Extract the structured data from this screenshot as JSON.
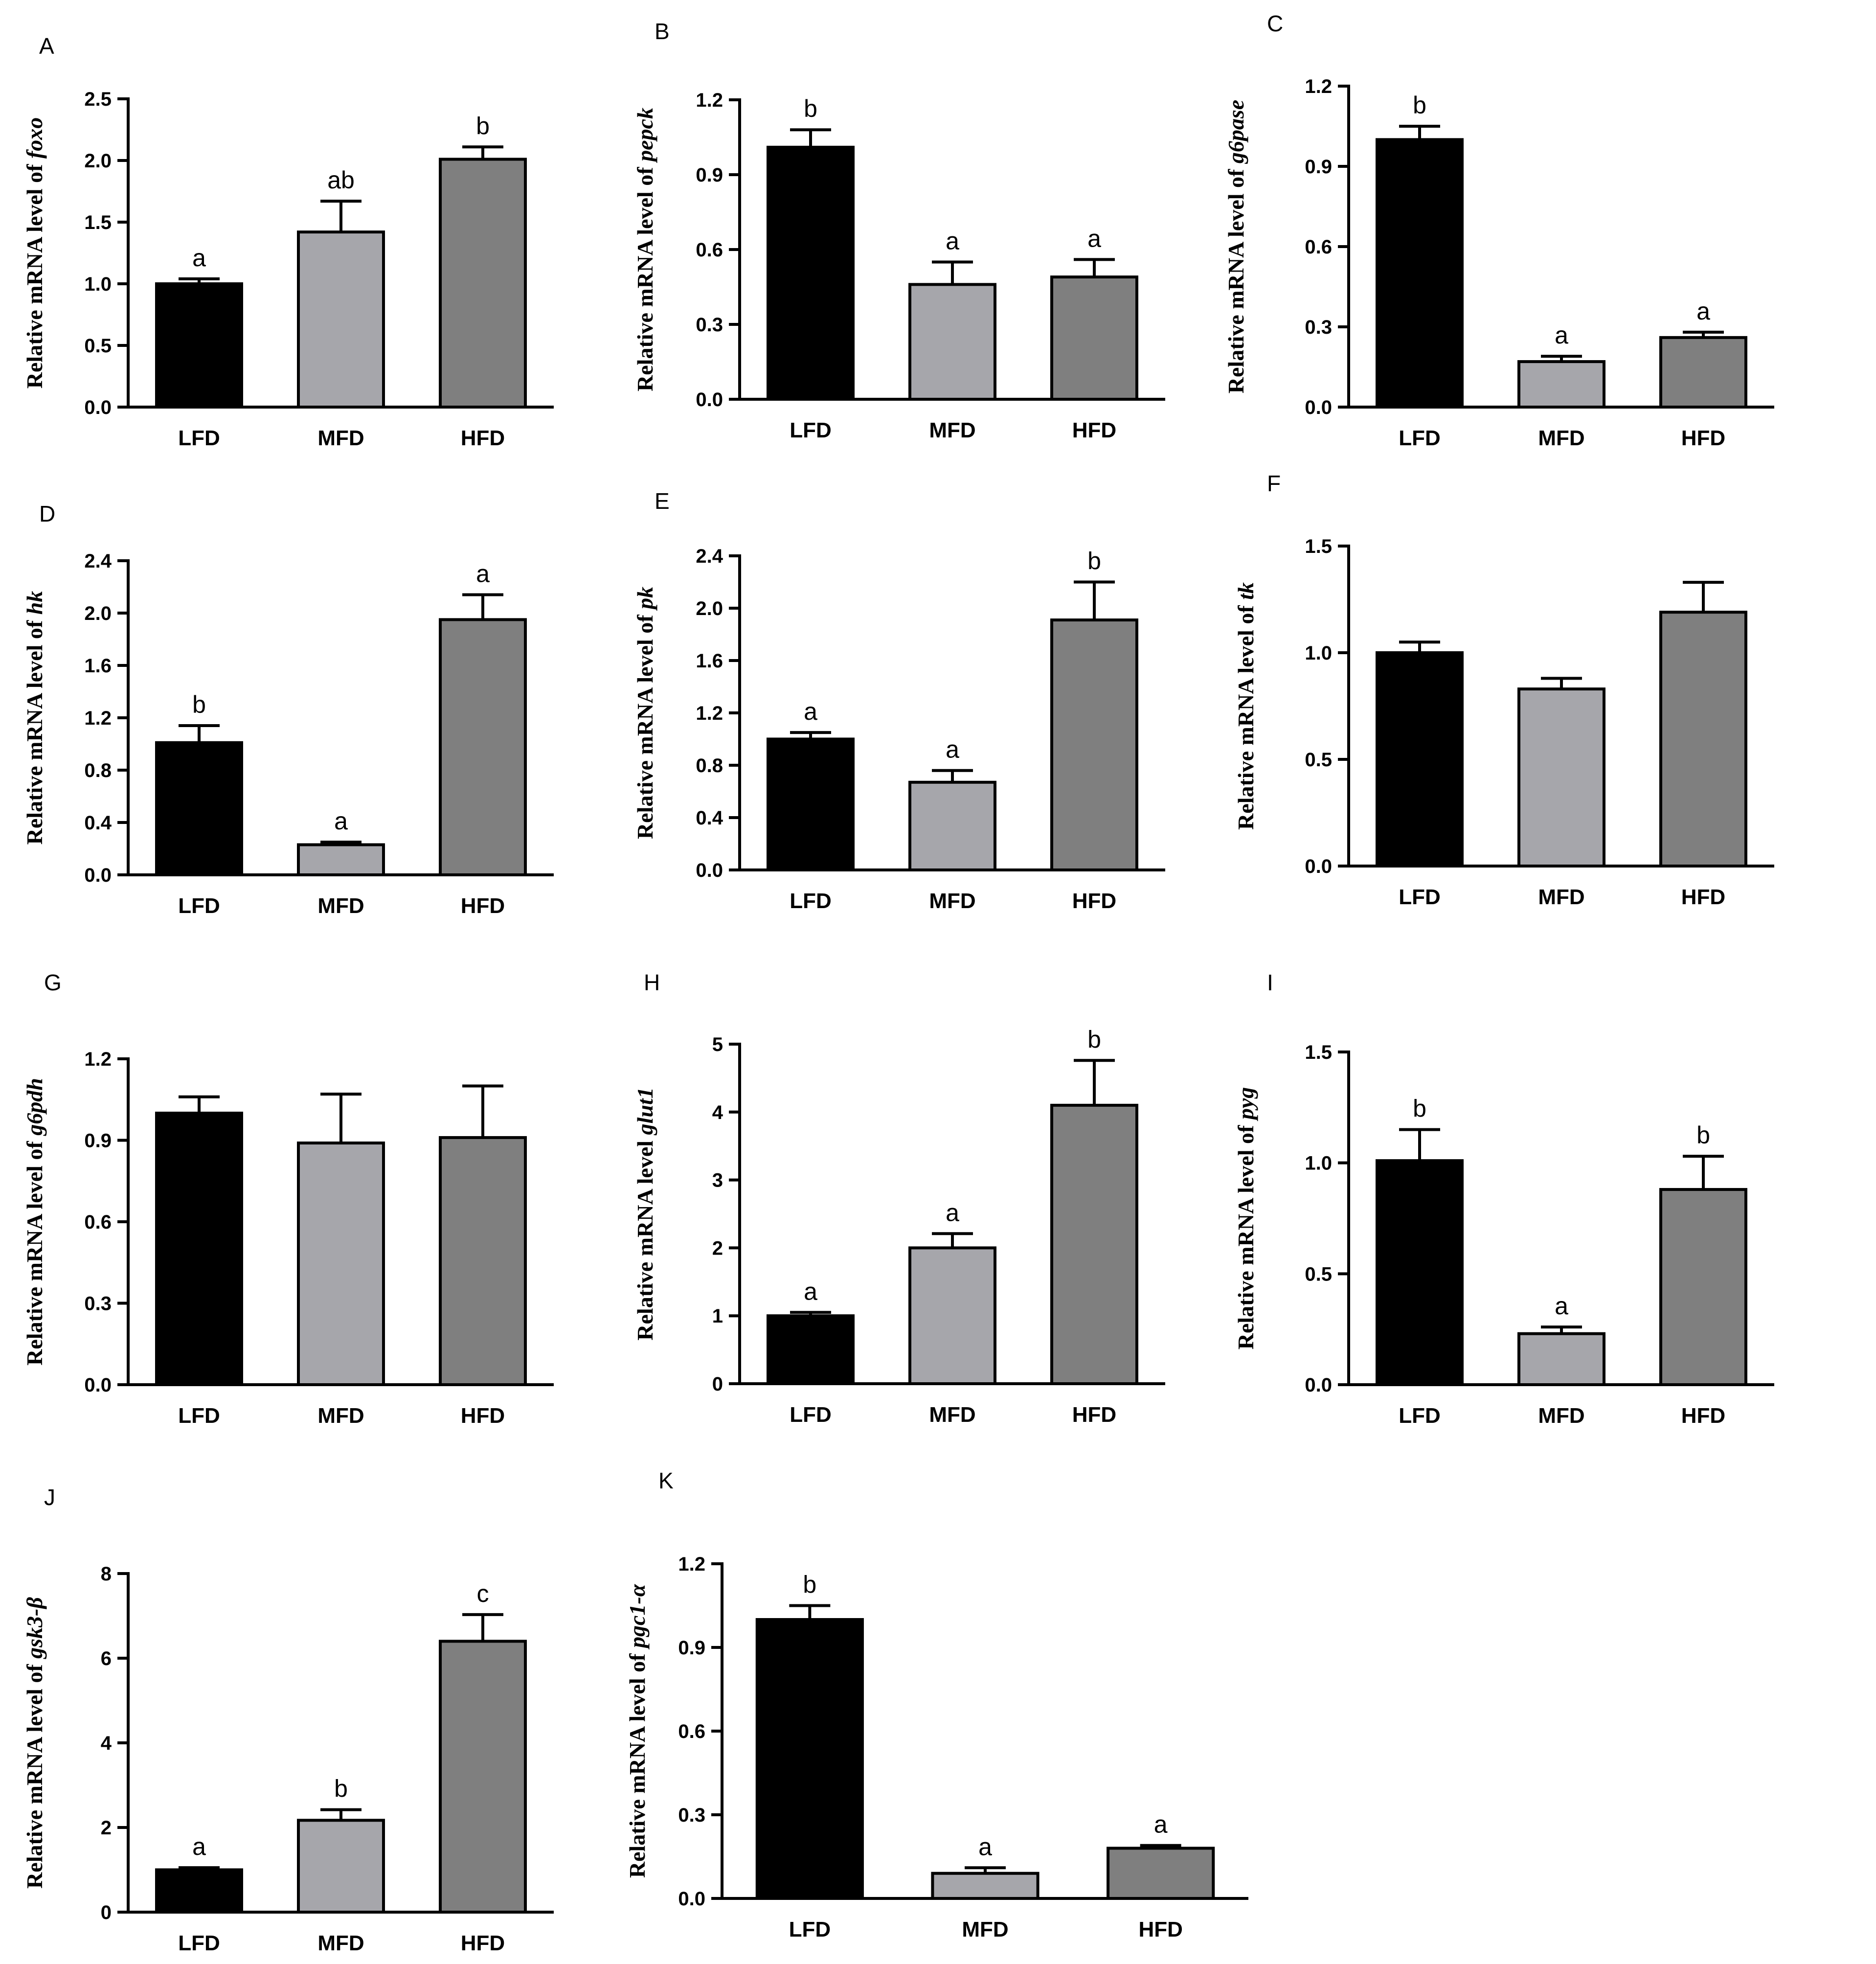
{
  "colors": {
    "LFD": "#000000",
    "MFD": "#a6a6ab",
    "HFD": "#7f7f7f"
  },
  "chart_data": [
    {
      "panel": "A",
      "type": "bar",
      "categories": [
        "LFD",
        "MFD",
        "HFD"
      ],
      "series": [
        {
          "name": "Relative mRNA level of foxo",
          "values": [
            1.0,
            1.42,
            2.01
          ]
        }
      ],
      "errors": [
        0.04,
        0.25,
        0.1
      ],
      "letters": [
        "a",
        "ab",
        "b"
      ],
      "ylabel_prefix": "Relative mRNA level of ",
      "gene": "foxo",
      "ylim": [
        0,
        2.5
      ],
      "yticks": [
        "0.0",
        "0.5",
        "1.0",
        "1.5",
        "2.0",
        "2.5"
      ]
    },
    {
      "panel": "B",
      "type": "bar",
      "categories": [
        "LFD",
        "MFD",
        "HFD"
      ],
      "series": [
        {
          "name": "Relative mRNA level of pepck",
          "values": [
            1.01,
            0.46,
            0.49
          ]
        }
      ],
      "errors": [
        0.07,
        0.09,
        0.07
      ],
      "letters": [
        "b",
        "a",
        "a"
      ],
      "ylabel_prefix": "Relative mRNA level of ",
      "gene": "pepck",
      "ylim": [
        0,
        1.2
      ],
      "yticks": [
        "0.0",
        "0.3",
        "0.6",
        "0.9",
        "1.2"
      ]
    },
    {
      "panel": "C",
      "type": "bar",
      "categories": [
        "LFD",
        "MFD",
        "HFD"
      ],
      "series": [
        {
          "name": "Relative mRNA level of g6pase",
          "values": [
            1.0,
            0.17,
            0.26
          ]
        }
      ],
      "errors": [
        0.05,
        0.02,
        0.02
      ],
      "letters": [
        "b",
        "a",
        "a"
      ],
      "ylabel_prefix": "Relative mRNA level of ",
      "gene": "g6pase",
      "ylim": [
        0,
        1.2
      ],
      "yticks": [
        "0.0",
        "0.3",
        "0.6",
        "0.9",
        "1.2"
      ]
    },
    {
      "panel": "D",
      "type": "bar",
      "categories": [
        "LFD",
        "MFD",
        "HFD"
      ],
      "series": [
        {
          "name": "Relative mRNA level of hk",
          "values": [
            1.01,
            0.23,
            1.95
          ]
        }
      ],
      "errors": [
        0.13,
        0.02,
        0.19
      ],
      "letters": [
        "b",
        "a",
        "a"
      ],
      "ylabel_prefix": "Relative mRNA level of ",
      "gene": "hk",
      "ylim": [
        0,
        2.4
      ],
      "yticks": [
        "0.0",
        "0.4",
        "0.8",
        "1.2",
        "1.6",
        "2.0",
        "2.4"
      ]
    },
    {
      "panel": "E",
      "type": "bar",
      "categories": [
        "LFD",
        "MFD",
        "HFD"
      ],
      "series": [
        {
          "name": "Relative mRNA level of pk",
          "values": [
            1.0,
            0.67,
            1.91
          ]
        }
      ],
      "errors": [
        0.05,
        0.09,
        0.29
      ],
      "letters": [
        "a",
        "a",
        "b"
      ],
      "ylabel_prefix": "Relative mRNA level of ",
      "gene": "pk",
      "ylim": [
        0,
        2.4
      ],
      "yticks": [
        "0.0",
        "0.4",
        "0.8",
        "1.2",
        "1.6",
        "2.0",
        "2.4"
      ]
    },
    {
      "panel": "F",
      "type": "bar",
      "categories": [
        "LFD",
        "MFD",
        "HFD"
      ],
      "series": [
        {
          "name": "Relative mRNA level of tk",
          "values": [
            1.0,
            0.83,
            1.19
          ]
        }
      ],
      "errors": [
        0.05,
        0.05,
        0.14
      ],
      "letters": [
        "",
        "",
        ""
      ],
      "ylabel_prefix": "Relative mRNA level of ",
      "gene": "tk",
      "ylim": [
        0,
        1.5
      ],
      "yticks": [
        "0.0",
        "0.5",
        "1.0",
        "1.5"
      ]
    },
    {
      "panel": "G",
      "type": "bar",
      "categories": [
        "LFD",
        "MFD",
        "HFD"
      ],
      "series": [
        {
          "name": "Relative mRNA level of g6pdh",
          "values": [
            1.0,
            0.89,
            0.91
          ]
        }
      ],
      "errors": [
        0.06,
        0.18,
        0.19
      ],
      "letters": [
        "",
        "",
        ""
      ],
      "ylabel_prefix": "Relative mRNA level of ",
      "gene": "g6pdh",
      "ylim": [
        0,
        1.2
      ],
      "yticks": [
        "0.0",
        "0.3",
        "0.6",
        "0.9",
        "1.2"
      ]
    },
    {
      "panel": "H",
      "type": "bar",
      "categories": [
        "LFD",
        "MFD",
        "HFD"
      ],
      "series": [
        {
          "name": "Relative mRNA level glut1",
          "values": [
            1.0,
            2.0,
            4.1
          ]
        }
      ],
      "errors": [
        0.05,
        0.21,
        0.66
      ],
      "letters": [
        "a",
        "a",
        "b"
      ],
      "ylabel_prefix": "Relative mRNA level ",
      "gene": "glut1",
      "ylim": [
        0,
        5
      ],
      "yticks": [
        "0",
        "1",
        "2",
        "3",
        "4",
        "5"
      ]
    },
    {
      "panel": "I",
      "type": "bar",
      "categories": [
        "LFD",
        "MFD",
        "HFD"
      ],
      "series": [
        {
          "name": "Relative mRNA level of pyg",
          "values": [
            1.01,
            0.23,
            0.88
          ]
        }
      ],
      "errors": [
        0.14,
        0.03,
        0.15
      ],
      "letters": [
        "b",
        "a",
        "b"
      ],
      "ylabel_prefix": "Relative mRNA level of ",
      "gene": "pyg",
      "ylim": [
        0,
        1.5
      ],
      "yticks": [
        "0.0",
        "0.5",
        "1.0",
        "1.5"
      ]
    },
    {
      "panel": "J",
      "type": "bar",
      "categories": [
        "LFD",
        "MFD",
        "HFD"
      ],
      "series": [
        {
          "name": "Relative mRNA level of gsk3-β",
          "values": [
            1.0,
            2.17,
            6.4
          ]
        }
      ],
      "errors": [
        0.05,
        0.25,
        0.63
      ],
      "letters": [
        "a",
        "b",
        "c"
      ],
      "ylabel_prefix": "Relative mRNA level of ",
      "gene": "gsk3-β",
      "ylim": [
        0,
        8
      ],
      "yticks": [
        "0",
        "2",
        "4",
        "6",
        "8"
      ]
    },
    {
      "panel": "K",
      "type": "bar",
      "categories": [
        "LFD",
        "MFD",
        "HFD"
      ],
      "series": [
        {
          "name": "Relative mRNA level of pgc1-α",
          "values": [
            1.0,
            0.09,
            0.18
          ]
        }
      ],
      "errors": [
        0.05,
        0.02,
        0.01
      ],
      "letters": [
        "b",
        "a",
        "a"
      ],
      "ylabel_prefix": "Relative mRNA level of ",
      "gene": "pgc1-α",
      "ylim": [
        0,
        1.2
      ],
      "yticks": [
        "0.0",
        "0.3",
        "0.6",
        "0.9",
        "1.2"
      ]
    }
  ]
}
